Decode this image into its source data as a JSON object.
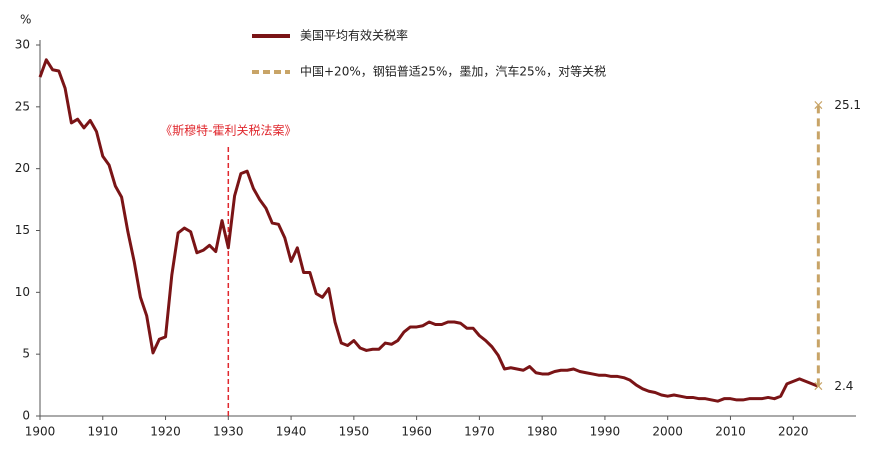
{
  "chart_data": {
    "type": "line",
    "y_unit_label": "%",
    "xlim": [
      1900,
      2030
    ],
    "ylim": [
      0,
      30
    ],
    "xticks": [
      1900,
      1910,
      1920,
      1930,
      1940,
      1950,
      1960,
      1970,
      1980,
      1990,
      2000,
      2010,
      2020
    ],
    "yticks": [
      0,
      5,
      10,
      15,
      20,
      25,
      30
    ],
    "grid": false,
    "annotation": {
      "text": "《斯穆特-霍利关税法案》",
      "x": 1930,
      "color": "#e0282e"
    },
    "series": [
      {
        "name": "美国平均有效关税率",
        "color": "#7a1416",
        "style": "solid",
        "x": [
          1900,
          1901,
          1902,
          1903,
          1904,
          1905,
          1906,
          1907,
          1908,
          1909,
          1910,
          1911,
          1912,
          1913,
          1914,
          1915,
          1916,
          1917,
          1918,
          1919,
          1920,
          1921,
          1922,
          1923,
          1924,
          1925,
          1926,
          1927,
          1928,
          1929,
          1930,
          1931,
          1932,
          1933,
          1934,
          1935,
          1936,
          1937,
          1938,
          1939,
          1940,
          1941,
          1942,
          1943,
          1944,
          1945,
          1946,
          1947,
          1948,
          1949,
          1950,
          1951,
          1952,
          1953,
          1954,
          1955,
          1956,
          1957,
          1958,
          1959,
          1960,
          1961,
          1962,
          1963,
          1964,
          1965,
          1966,
          1967,
          1968,
          1969,
          1970,
          1971,
          1972,
          1973,
          1974,
          1975,
          1976,
          1977,
          1978,
          1979,
          1980,
          1981,
          1982,
          1983,
          1984,
          1985,
          1986,
          1987,
          1988,
          1989,
          1990,
          1991,
          1992,
          1993,
          1994,
          1995,
          1996,
          1997,
          1998,
          1999,
          2000,
          2001,
          2002,
          2003,
          2004,
          2005,
          2006,
          2007,
          2008,
          2009,
          2010,
          2011,
          2012,
          2013,
          2014,
          2015,
          2016,
          2017,
          2018,
          2019,
          2020,
          2021,
          2022,
          2023,
          2024
        ],
        "values": [
          27.4,
          28.8,
          28.0,
          27.9,
          26.5,
          23.7,
          24.0,
          23.3,
          23.9,
          23.0,
          21.0,
          20.3,
          18.6,
          17.7,
          14.9,
          12.5,
          9.6,
          8.1,
          5.1,
          6.2,
          6.4,
          11.4,
          14.8,
          15.2,
          14.9,
          13.2,
          13.4,
          13.8,
          13.3,
          15.8,
          13.6,
          17.8,
          19.6,
          19.8,
          18.4,
          17.5,
          16.8,
          15.6,
          15.5,
          14.4,
          12.5,
          13.6,
          11.6,
          11.6,
          9.9,
          9.6,
          10.3,
          7.6,
          5.9,
          5.7,
          6.1,
          5.5,
          5.3,
          5.4,
          5.4,
          5.9,
          5.8,
          6.1,
          6.8,
          7.2,
          7.2,
          7.3,
          7.6,
          7.4,
          7.4,
          7.6,
          7.6,
          7.5,
          7.1,
          7.1,
          6.5,
          6.1,
          5.6,
          4.9,
          3.8,
          3.9,
          3.8,
          3.7,
          4.0,
          3.5,
          3.4,
          3.4,
          3.6,
          3.7,
          3.7,
          3.8,
          3.6,
          3.5,
          3.4,
          3.3,
          3.3,
          3.2,
          3.2,
          3.1,
          2.9,
          2.5,
          2.2,
          2.0,
          1.9,
          1.7,
          1.6,
          1.7,
          1.6,
          1.5,
          1.5,
          1.4,
          1.4,
          1.3,
          1.2,
          1.4,
          1.4,
          1.3,
          1.3,
          1.4,
          1.4,
          1.4,
          1.5,
          1.4,
          1.6,
          2.6,
          2.8,
          3.0,
          2.8,
          2.6,
          2.4
        ]
      },
      {
        "name": "中国+20%，钢铝普适25%，墨加，汽车25%，对等关税",
        "color": "#c8a467",
        "style": "dashed",
        "x": [
          2024,
          2024
        ],
        "values": [
          2.4,
          25.1
        ],
        "show_labels": true
      }
    ]
  }
}
